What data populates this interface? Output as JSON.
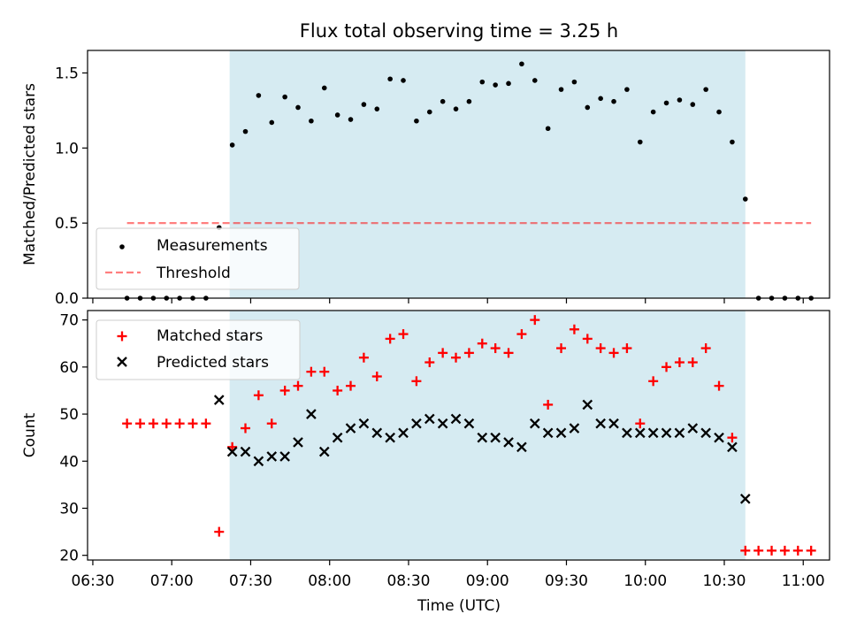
{
  "title": "Flux total observing time = 3.25 h",
  "colors": {
    "shade": "#add8e6",
    "measure": "#000000",
    "threshold": "#ff0000",
    "matched": "#ff0000",
    "predicted": "#000000"
  },
  "chart_data": [
    {
      "type": "scatter",
      "ylabel": "Matched/Predicted stars",
      "xlabel": "",
      "xlim": [
        "06:28",
        "11:10"
      ],
      "ylim": [
        0,
        1.65
      ],
      "yticks": [
        "0.0",
        "0.5",
        "1.0",
        "1.5"
      ],
      "grid": false,
      "legend_position": "lower-left",
      "observing_window": [
        "07:22",
        "10:38"
      ],
      "series": [
        {
          "name": "Measurements",
          "marker": "dot",
          "x": [
            "06:43",
            "06:48",
            "06:53",
            "06:58",
            "07:03",
            "07:08",
            "07:13",
            "07:18",
            "07:23",
            "07:28",
            "07:33",
            "07:38",
            "07:43",
            "07:48",
            "07:53",
            "07:58",
            "08:03",
            "08:08",
            "08:13",
            "08:18",
            "08:23",
            "08:28",
            "08:33",
            "08:38",
            "08:43",
            "08:48",
            "08:53",
            "08:58",
            "09:03",
            "09:08",
            "09:13",
            "09:18",
            "09:23",
            "09:28",
            "09:33",
            "09:38",
            "09:43",
            "09:48",
            "09:53",
            "09:58",
            "10:03",
            "10:08",
            "10:13",
            "10:18",
            "10:23",
            "10:28",
            "10:33",
            "10:38",
            "10:43",
            "10:48",
            "10:53",
            "10:58",
            "11:03"
          ],
          "values": [
            0,
            0,
            0,
            0,
            0,
            0,
            0,
            0.47,
            1.02,
            1.11,
            1.35,
            1.17,
            1.34,
            1.27,
            1.18,
            1.4,
            1.22,
            1.19,
            1.29,
            1.26,
            1.46,
            1.45,
            1.18,
            1.24,
            1.31,
            1.26,
            1.31,
            1.44,
            1.42,
            1.43,
            1.56,
            1.45,
            1.13,
            1.39,
            1.44,
            1.27,
            1.33,
            1.31,
            1.39,
            1.04,
            1.24,
            1.3,
            1.32,
            1.29,
            1.39,
            1.24,
            1.04,
            0.66,
            0,
            0,
            0,
            0,
            0
          ]
        },
        {
          "name": "Threshold",
          "style": "dashed",
          "x": [
            "06:43",
            "11:03"
          ],
          "values": [
            0.5,
            0.5
          ]
        }
      ]
    },
    {
      "type": "scatter",
      "ylabel": "Count",
      "xlabel": "Time (UTC)",
      "xlim": [
        "06:28",
        "11:10"
      ],
      "ylim": [
        19,
        72
      ],
      "yticks": [
        "20",
        "30",
        "40",
        "50",
        "60",
        "70"
      ],
      "xticks": [
        "06:30",
        "07:00",
        "07:30",
        "08:00",
        "08:30",
        "09:00",
        "09:30",
        "10:00",
        "10:30",
        "11:00"
      ],
      "grid": false,
      "legend_position": "upper-left",
      "observing_window": [
        "07:22",
        "10:38"
      ],
      "series": [
        {
          "name": "Matched stars",
          "marker": "plus",
          "x": [
            "06:43",
            "06:48",
            "06:53",
            "06:58",
            "07:03",
            "07:08",
            "07:13",
            "07:18",
            "07:23",
            "07:28",
            "07:33",
            "07:38",
            "07:43",
            "07:48",
            "07:53",
            "07:58",
            "08:03",
            "08:08",
            "08:13",
            "08:18",
            "08:23",
            "08:28",
            "08:33",
            "08:38",
            "08:43",
            "08:48",
            "08:53",
            "08:58",
            "09:03",
            "09:08",
            "09:13",
            "09:18",
            "09:23",
            "09:28",
            "09:33",
            "09:38",
            "09:43",
            "09:48",
            "09:53",
            "09:58",
            "10:03",
            "10:08",
            "10:13",
            "10:18",
            "10:23",
            "10:28",
            "10:33",
            "10:38",
            "10:43",
            "10:48",
            "10:53",
            "10:58",
            "11:03"
          ],
          "values": [
            48,
            48,
            48,
            48,
            48,
            48,
            48,
            25,
            43,
            47,
            54,
            48,
            55,
            56,
            59,
            59,
            55,
            56,
            62,
            58,
            66,
            67,
            57,
            61,
            63,
            62,
            63,
            65,
            64,
            63,
            67,
            70,
            52,
            64,
            68,
            66,
            64,
            63,
            64,
            48,
            57,
            60,
            61,
            61,
            64,
            56,
            45,
            21,
            21,
            21,
            21,
            21,
            21
          ]
        },
        {
          "name": "Predicted stars",
          "marker": "x",
          "x": [
            "07:18",
            "07:23",
            "07:28",
            "07:33",
            "07:38",
            "07:43",
            "07:48",
            "07:53",
            "07:58",
            "08:03",
            "08:08",
            "08:13",
            "08:18",
            "08:23",
            "08:28",
            "08:33",
            "08:38",
            "08:43",
            "08:48",
            "08:53",
            "08:58",
            "09:03",
            "09:08",
            "09:13",
            "09:18",
            "09:23",
            "09:28",
            "09:33",
            "09:38",
            "09:43",
            "09:48",
            "09:53",
            "09:58",
            "10:03",
            "10:08",
            "10:13",
            "10:18",
            "10:23",
            "10:28",
            "10:33",
            "10:38"
          ],
          "values": [
            53,
            42,
            42,
            40,
            41,
            41,
            44,
            50,
            42,
            45,
            47,
            48,
            46,
            45,
            46,
            48,
            49,
            48,
            49,
            48,
            45,
            45,
            44,
            43,
            48,
            46,
            46,
            47,
            52,
            48,
            48,
            46,
            46,
            46,
            46,
            46,
            47,
            46,
            45,
            43,
            32
          ]
        }
      ]
    }
  ]
}
